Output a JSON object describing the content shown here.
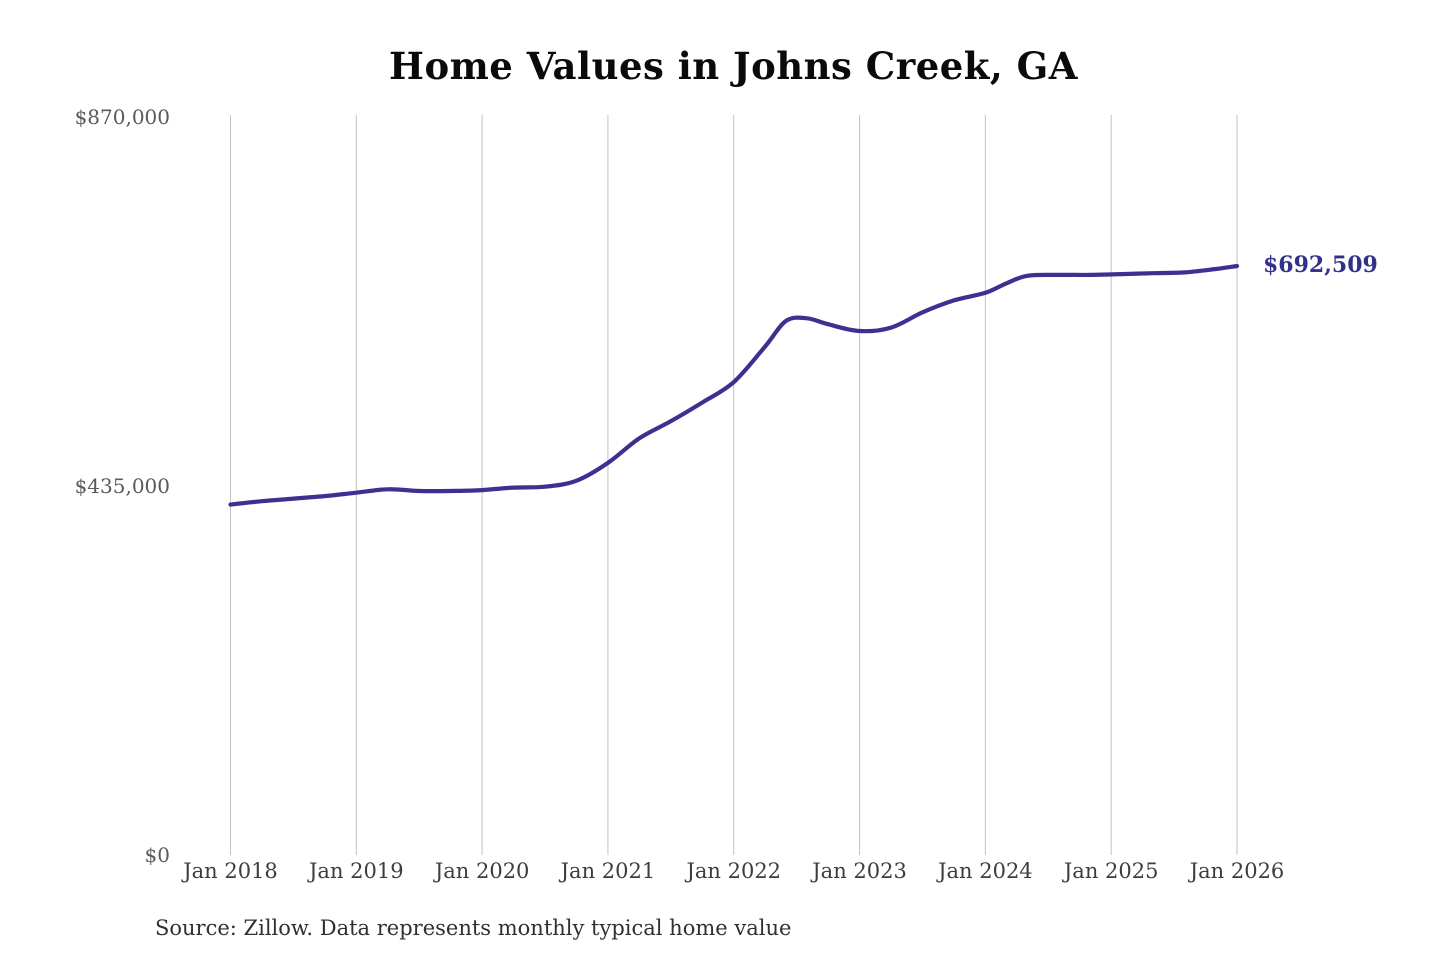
{
  "title": "Home Values in Johns Creek, GA",
  "source_note": "Source: Zillow. Data represents monthly typical home value",
  "end_value_label": "$692,509",
  "colors": {
    "line": "#3b3191",
    "end_label": "#32308d",
    "gridline": "#c2c2c2",
    "y_tick_text": "#5a5a5a",
    "x_tick_text": "#3d3d3d",
    "title_text": "#0a0a0a",
    "source_text": "#303030",
    "background": "#ffffff"
  },
  "y_axis": {
    "ticks": [
      "$870,000",
      "$435,000",
      "$0"
    ]
  },
  "x_axis": {
    "ticks": [
      "Jan 2018",
      "Jan 2019",
      "Jan 2020",
      "Jan 2021",
      "Jan 2022",
      "Jan 2023",
      "Jan 2024",
      "Jan 2025",
      "Jan 2026"
    ]
  },
  "chart_data": {
    "type": "line",
    "title": "Home Values in Johns Creek, GA",
    "xlabel": "",
    "ylabel": "",
    "ylim": [
      0,
      870000
    ],
    "y_tick_values": [
      870000,
      435000,
      0
    ],
    "grid": "vertical-only",
    "legend": "none",
    "series_name": "Monthly typical home value (Zillow)",
    "x": [
      "2018-01",
      "2018-04",
      "2018-07",
      "2018-10",
      "2019-01",
      "2019-04",
      "2019-07",
      "2019-10",
      "2020-01",
      "2020-04",
      "2020-07",
      "2020-10",
      "2021-01",
      "2021-04",
      "2021-07",
      "2021-10",
      "2022-01",
      "2022-04",
      "2022-06",
      "2022-08",
      "2022-10",
      "2023-01",
      "2023-04",
      "2023-07",
      "2023-10",
      "2024-01",
      "2024-03",
      "2024-05",
      "2024-08",
      "2024-11",
      "2025-02",
      "2025-05",
      "2025-08",
      "2025-11",
      "2026-01"
    ],
    "values": [
      412000,
      416000,
      419000,
      422000,
      426000,
      430000,
      428000,
      428000,
      429000,
      432000,
      433000,
      440000,
      461000,
      490000,
      510000,
      532000,
      556000,
      598000,
      628000,
      631000,
      624000,
      616000,
      620000,
      638000,
      652000,
      661000,
      672000,
      681000,
      682000,
      682000,
      683000,
      684000,
      685000,
      689000,
      692509
    ],
    "last_value": 692509,
    "last_value_label": "$692,509"
  }
}
